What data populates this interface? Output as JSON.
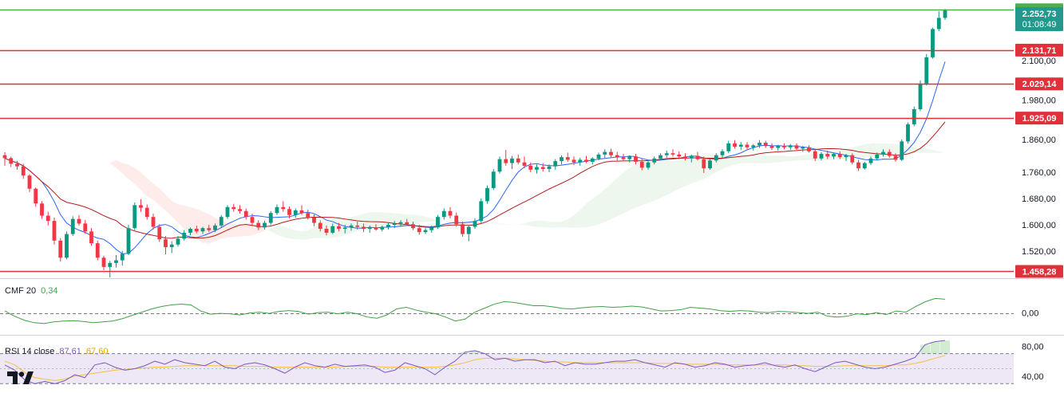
{
  "chart_data": [
    {
      "type": "candlestick",
      "price_range": [
        1440,
        2265
      ],
      "grid": false,
      "y_ticks": [
        {
          "value": 1520,
          "label": "1.520,00"
        },
        {
          "value": 1600,
          "label": "1.600,00"
        },
        {
          "value": 1680,
          "label": "1.680,00"
        },
        {
          "value": 1760,
          "label": "1.760,00"
        },
        {
          "value": 1860,
          "label": "1.860,00"
        },
        {
          "value": 1980,
          "label": "1.980,00"
        },
        {
          "value": 2100,
          "label": "2.100,00"
        }
      ],
      "levels": [
        {
          "value": 2254.58,
          "label": "2.254,58",
          "color": "#4caf50"
        },
        {
          "value": 2131.71,
          "label": "2.131,71",
          "color": "#e0303a"
        },
        {
          "value": 2029.14,
          "label": "2.029,14",
          "color": "#e0303a"
        },
        {
          "value": 1925.09,
          "label": "1.925,09",
          "color": "#e0303a"
        },
        {
          "value": 1458.28,
          "label": "1.458,28",
          "color": "#e0303a"
        }
      ],
      "current_price": {
        "value": 2252.73,
        "label": "2.252,73",
        "countdown": "01:08:49",
        "color": "#22998c"
      },
      "candles": [
        [
          1812,
          1821,
          1780,
          1803
        ],
        [
          1803,
          1808,
          1776,
          1786
        ],
        [
          1786,
          1795,
          1768,
          1778
        ],
        [
          1778,
          1786,
          1740,
          1750
        ],
        [
          1750,
          1754,
          1700,
          1710
        ],
        [
          1710,
          1714,
          1655,
          1665
        ],
        [
          1665,
          1672,
          1618,
          1628
        ],
        [
          1628,
          1640,
          1598,
          1612
        ],
        [
          1612,
          1622,
          1540,
          1552
        ],
        [
          1552,
          1560,
          1488,
          1500
        ],
        [
          1500,
          1580,
          1495,
          1572
        ],
        [
          1572,
          1626,
          1566,
          1618
        ],
        [
          1618,
          1630,
          1598,
          1604
        ],
        [
          1604,
          1615,
          1572,
          1580
        ],
        [
          1580,
          1590,
          1536,
          1544
        ],
        [
          1544,
          1552,
          1492,
          1500
        ],
        [
          1500,
          1506,
          1462,
          1472
        ],
        [
          1472,
          1490,
          1440,
          1484
        ],
        [
          1484,
          1508,
          1470,
          1492
        ],
        [
          1492,
          1520,
          1476,
          1512
        ],
        [
          1512,
          1600,
          1508,
          1590
        ],
        [
          1590,
          1668,
          1584,
          1660
        ],
        [
          1660,
          1678,
          1640,
          1652
        ],
        [
          1652,
          1662,
          1616,
          1624
        ],
        [
          1624,
          1634,
          1586,
          1594
        ],
        [
          1594,
          1602,
          1548,
          1556
        ],
        [
          1556,
          1566,
          1510,
          1532
        ],
        [
          1532,
          1550,
          1514,
          1540
        ],
        [
          1540,
          1566,
          1534,
          1558
        ],
        [
          1558,
          1584,
          1552,
          1576
        ],
        [
          1576,
          1592,
          1568,
          1588
        ],
        [
          1588,
          1598,
          1574,
          1580
        ],
        [
          1580,
          1594,
          1572,
          1590
        ],
        [
          1590,
          1600,
          1578,
          1584
        ],
        [
          1584,
          1604,
          1578,
          1598
        ],
        [
          1598,
          1630,
          1592,
          1624
        ],
        [
          1624,
          1660,
          1618,
          1654
        ],
        [
          1654,
          1664,
          1640,
          1648
        ],
        [
          1648,
          1660,
          1634,
          1642
        ],
        [
          1642,
          1650,
          1616,
          1624
        ],
        [
          1624,
          1634,
          1596,
          1606
        ],
        [
          1606,
          1614,
          1584,
          1592
        ],
        [
          1592,
          1612,
          1586,
          1606
        ],
        [
          1606,
          1642,
          1600,
          1636
        ],
        [
          1636,
          1662,
          1630,
          1654
        ],
        [
          1654,
          1672,
          1640,
          1648
        ],
        [
          1648,
          1656,
          1620,
          1630
        ],
        [
          1630,
          1650,
          1622,
          1644
        ],
        [
          1644,
          1660,
          1630,
          1636
        ],
        [
          1636,
          1646,
          1616,
          1622
        ],
        [
          1622,
          1632,
          1596,
          1606
        ],
        [
          1606,
          1614,
          1580,
          1588
        ],
        [
          1588,
          1598,
          1568,
          1576
        ],
        [
          1576,
          1604,
          1572,
          1596
        ],
        [
          1596,
          1606,
          1580,
          1588
        ],
        [
          1588,
          1600,
          1574,
          1592
        ],
        [
          1592,
          1604,
          1582,
          1598
        ],
        [
          1598,
          1610,
          1586,
          1594
        ],
        [
          1594,
          1604,
          1578,
          1588
        ],
        [
          1588,
          1598,
          1576,
          1592
        ],
        [
          1592,
          1602,
          1582,
          1586
        ],
        [
          1586,
          1598,
          1580,
          1594
        ],
        [
          1594,
          1606,
          1586,
          1600
        ],
        [
          1600,
          1612,
          1590,
          1604
        ],
        [
          1604,
          1614,
          1594,
          1608
        ],
        [
          1608,
          1618,
          1598,
          1602
        ],
        [
          1602,
          1610,
          1584,
          1590
        ],
        [
          1590,
          1600,
          1570,
          1578
        ],
        [
          1578,
          1590,
          1572,
          1584
        ],
        [
          1584,
          1598,
          1576,
          1592
        ],
        [
          1592,
          1630,
          1588,
          1624
        ],
        [
          1624,
          1650,
          1616,
          1642
        ],
        [
          1642,
          1654,
          1620,
          1628
        ],
        [
          1628,
          1638,
          1594,
          1602
        ],
        [
          1602,
          1610,
          1564,
          1572
        ],
        [
          1572,
          1600,
          1550,
          1594
        ],
        [
          1594,
          1620,
          1588,
          1612
        ],
        [
          1612,
          1680,
          1606,
          1672
        ],
        [
          1672,
          1720,
          1664,
          1712
        ],
        [
          1712,
          1770,
          1706,
          1762
        ],
        [
          1762,
          1808,
          1756,
          1800
        ],
        [
          1800,
          1828,
          1780,
          1788
        ],
        [
          1788,
          1810,
          1770,
          1802
        ],
        [
          1802,
          1814,
          1784,
          1790
        ],
        [
          1790,
          1808,
          1772,
          1780
        ],
        [
          1780,
          1790,
          1760,
          1768
        ],
        [
          1768,
          1784,
          1756,
          1776
        ],
        [
          1776,
          1788,
          1762,
          1770
        ],
        [
          1770,
          1784,
          1760,
          1778
        ],
        [
          1778,
          1800,
          1768,
          1794
        ],
        [
          1794,
          1812,
          1784,
          1806
        ],
        [
          1806,
          1820,
          1792,
          1798
        ],
        [
          1798,
          1808,
          1782,
          1790
        ],
        [
          1790,
          1804,
          1780,
          1798
        ],
        [
          1798,
          1810,
          1788,
          1792
        ],
        [
          1792,
          1806,
          1784,
          1802
        ],
        [
          1802,
          1820,
          1796,
          1814
        ],
        [
          1814,
          1830,
          1804,
          1822
        ],
        [
          1822,
          1832,
          1806,
          1812
        ],
        [
          1812,
          1822,
          1796,
          1806
        ],
        [
          1806,
          1816,
          1794,
          1800
        ],
        [
          1800,
          1812,
          1790,
          1808
        ],
        [
          1808,
          1816,
          1784,
          1792
        ],
        [
          1792,
          1802,
          1766,
          1774
        ],
        [
          1774,
          1796,
          1768,
          1790
        ],
        [
          1790,
          1808,
          1784,
          1802
        ],
        [
          1802,
          1818,
          1796,
          1812
        ],
        [
          1812,
          1826,
          1804,
          1818
        ],
        [
          1818,
          1830,
          1808,
          1814
        ],
        [
          1814,
          1824,
          1800,
          1808
        ],
        [
          1808,
          1818,
          1796,
          1802
        ],
        [
          1802,
          1814,
          1790,
          1810
        ],
        [
          1810,
          1822,
          1796,
          1800
        ],
        [
          1800,
          1808,
          1758,
          1772
        ],
        [
          1772,
          1800,
          1768,
          1796
        ],
        [
          1796,
          1818,
          1790,
          1812
        ],
        [
          1812,
          1830,
          1804,
          1824
        ],
        [
          1824,
          1856,
          1818,
          1848
        ],
        [
          1848,
          1858,
          1832,
          1838
        ],
        [
          1838,
          1852,
          1828,
          1844
        ],
        [
          1844,
          1852,
          1830,
          1836
        ],
        [
          1836,
          1846,
          1826,
          1842
        ],
        [
          1842,
          1858,
          1834,
          1850
        ],
        [
          1850,
          1856,
          1834,
          1840
        ],
        [
          1840,
          1848,
          1828,
          1834
        ],
        [
          1834,
          1844,
          1826,
          1840
        ],
        [
          1840,
          1848,
          1830,
          1836
        ],
        [
          1836,
          1846,
          1828,
          1842
        ],
        [
          1842,
          1848,
          1828,
          1832
        ],
        [
          1832,
          1840,
          1822,
          1836
        ],
        [
          1836,
          1842,
          1820,
          1824
        ],
        [
          1824,
          1832,
          1794,
          1802
        ],
        [
          1802,
          1822,
          1796,
          1816
        ],
        [
          1816,
          1826,
          1800,
          1808
        ],
        [
          1808,
          1820,
          1800,
          1816
        ],
        [
          1816,
          1824,
          1800,
          1806
        ],
        [
          1806,
          1816,
          1794,
          1812
        ],
        [
          1812,
          1818,
          1784,
          1790
        ],
        [
          1790,
          1798,
          1764,
          1772
        ],
        [
          1772,
          1792,
          1768,
          1788
        ],
        [
          1788,
          1808,
          1782,
          1802
        ],
        [
          1802,
          1820,
          1796,
          1814
        ],
        [
          1814,
          1830,
          1808,
          1822
        ],
        [
          1822,
          1830,
          1804,
          1810
        ],
        [
          1810,
          1818,
          1792,
          1798
        ],
        [
          1798,
          1860,
          1794,
          1854
        ],
        [
          1854,
          1912,
          1848,
          1906
        ],
        [
          1906,
          1960,
          1900,
          1952
        ],
        [
          1952,
          2040,
          1946,
          2030
        ],
        [
          2030,
          2120,
          2024,
          2110
        ],
        [
          2110,
          2200,
          2106,
          2196
        ],
        [
          2196,
          2250,
          2190,
          2230
        ],
        [
          2230,
          2257,
          2224,
          2253
        ]
      ]
    },
    {
      "type": "line",
      "name": "CMF",
      "title": "CMF 20",
      "value_label": "0,34",
      "ylim": [
        -0.5,
        0.8
      ],
      "y_ticks": [
        {
          "value": 0,
          "label": "0,00"
        }
      ],
      "color": "#43a047",
      "values": [
        0.05,
        -0.08,
        -0.18,
        -0.24,
        -0.26,
        -0.22,
        -0.2,
        -0.19,
        -0.21,
        -0.24,
        -0.22,
        -0.2,
        -0.14,
        -0.06,
        0.02,
        0.1,
        0.16,
        0.2,
        0.22,
        0.2,
        0.05,
        -0.03,
        -0.01,
        -0.02,
        -0.05,
        0,
        0.02,
        -0.01,
        0.04,
        0.06,
        0.04,
        -0.03,
        0.01,
        0.02,
        -0.02,
        0.02,
        -0.02,
        -0.1,
        -0.13,
        -0.05,
        0.1,
        0.14,
        0.07,
        0.02,
        -0.02,
        -0.1,
        -0.2,
        -0.15,
        0.02,
        0.12,
        0.22,
        0.28,
        0.26,
        0.22,
        0.18,
        0.18,
        0.15,
        0.11,
        0.1,
        0.13,
        0.15,
        0.16,
        0.14,
        0.15,
        0.17,
        0.15,
        0.1,
        0.05,
        0.06,
        0.08,
        0.14,
        0.12,
        0.1,
        0.06,
        0.04,
        0.06,
        0.05,
        0.02,
        0.01,
        0.04,
        0.03,
        0.01,
        -0.01,
        0.02,
        -0.08,
        -0.1,
        -0.08,
        -0.02,
        -0.04,
        0.01,
        -0.04,
        0.05,
        0.02,
        0.16,
        0.28,
        0.36,
        0.34
      ]
    },
    {
      "type": "line",
      "name": "RSI",
      "title": "RSI 14 close",
      "value_label": "87,61",
      "ma_label": "67,60",
      "ylim": [
        25,
        92
      ],
      "band": [
        30,
        70
      ],
      "y_ticks": [
        {
          "value": 80,
          "label": "80,00"
        },
        {
          "value": 40,
          "label": "40,00"
        }
      ],
      "colors": {
        "rsi": "#7e57c2",
        "ma": "#f5c242",
        "band": "#ede7f6"
      },
      "rsi": [
        55,
        48,
        35,
        30,
        33,
        30,
        34,
        42,
        38,
        55,
        58,
        52,
        48,
        50,
        54,
        60,
        56,
        62,
        58,
        56,
        54,
        60,
        52,
        50,
        56,
        58,
        55,
        50,
        44,
        52,
        58,
        54,
        52,
        56,
        53,
        54,
        55,
        52,
        45,
        48,
        58,
        54,
        50,
        42,
        52,
        60,
        72,
        74,
        70,
        62,
        64,
        60,
        62,
        62,
        58,
        60,
        54,
        58,
        56,
        56,
        58,
        60,
        60,
        62,
        58,
        55,
        52,
        58,
        56,
        52,
        54,
        58,
        56,
        52,
        54,
        55,
        58,
        54,
        52,
        55,
        50,
        46,
        52,
        58,
        60,
        56,
        52,
        50,
        52,
        56,
        60,
        65,
        82,
        86,
        87.6
      ],
      "rsi_ma": [
        60,
        55,
        45,
        38,
        36,
        34,
        36,
        40,
        42,
        44,
        46,
        48,
        49,
        50,
        51,
        52,
        52,
        53,
        54,
        54,
        54,
        54,
        54,
        54,
        53,
        53,
        53,
        52,
        52,
        52,
        52,
        52,
        52,
        52,
        53,
        53,
        53,
        53,
        52,
        52,
        52,
        52,
        52,
        52,
        53,
        55,
        58,
        62,
        64,
        64,
        64,
        63,
        62,
        61,
        60,
        59,
        59,
        58,
        58,
        58,
        58,
        58,
        58,
        58,
        58,
        57,
        57,
        57,
        56,
        56,
        56,
        56,
        55,
        55,
        55,
        55,
        55,
        55,
        55,
        54,
        54,
        53,
        53,
        53,
        54,
        54,
        54,
        54,
        54,
        55,
        55,
        57,
        60,
        64,
        67.6
      ]
    }
  ]
}
